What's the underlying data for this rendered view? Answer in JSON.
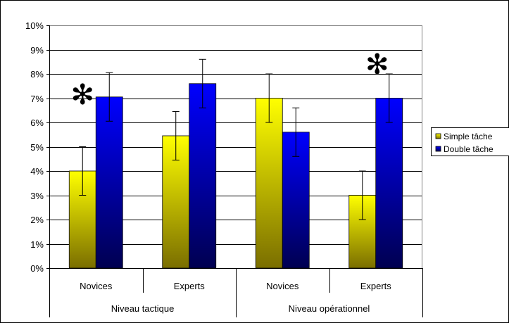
{
  "chart_data": {
    "type": "bar",
    "groups": [
      {
        "label": "Niveau tactique",
        "categories": [
          "Novices",
          "Experts"
        ]
      },
      {
        "label": "Niveau opérationnel",
        "categories": [
          "Novices",
          "Experts"
        ]
      }
    ],
    "categories": [
      "Novices",
      "Experts",
      "Novices",
      "Experts"
    ],
    "series": [
      {
        "name": "Simple tâche",
        "values": [
          4.0,
          5.45,
          7.0,
          3.0
        ],
        "error": [
          1.0,
          1.0,
          1.0,
          1.0
        ],
        "gradient_top": "#ffff00",
        "gradient_bottom": "#7a6e00"
      },
      {
        "name": "Double tâche",
        "values": [
          7.05,
          7.6,
          5.6,
          7.0
        ],
        "error": [
          1.0,
          1.0,
          1.0,
          1.0
        ],
        "gradient_top": "#0000ff",
        "gradient_bottom": "#000050"
      }
    ],
    "significance_marks": [
      {
        "category_index": 0,
        "symbol": "✻"
      },
      {
        "category_index": 3,
        "symbol": "✻"
      }
    ],
    "ylim": [
      0,
      10
    ],
    "y_ticks": [
      "0%",
      "1%",
      "2%",
      "3%",
      "4%",
      "5%",
      "6%",
      "7%",
      "8%",
      "9%",
      "10%"
    ],
    "grid": true,
    "legend_position": "right",
    "plot_background": "#ffffff",
    "grid_color": "#000000"
  }
}
